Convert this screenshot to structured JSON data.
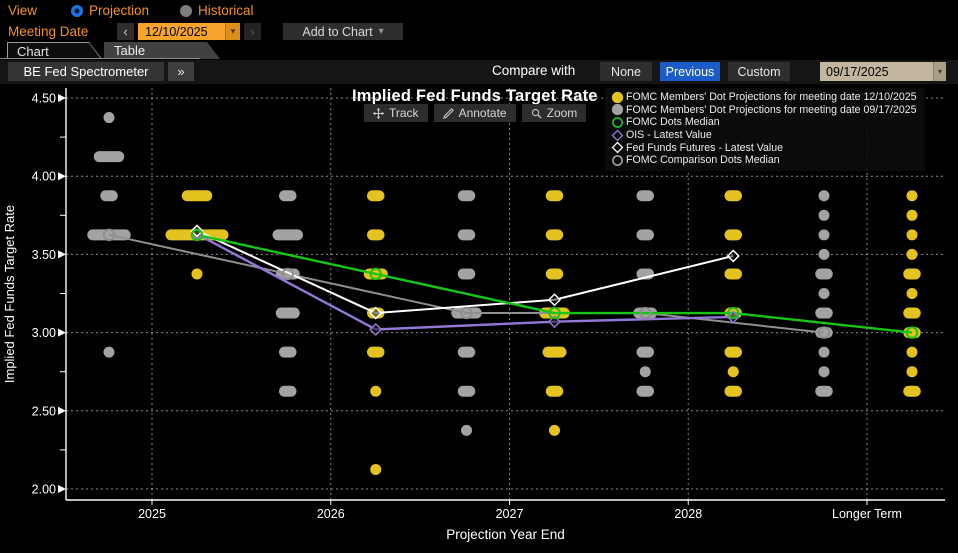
{
  "toolbar": {
    "view_label": "View",
    "radio_projection": "Projection",
    "radio_historical": "Historical",
    "meeting_date_label": "Meeting Date",
    "prev_arrow": "‹",
    "next_arrow": "›",
    "meeting_date_value": "12/10/2025",
    "add_to_chart_label": "Add to Chart",
    "caret": "▾",
    "tab_chart": "Chart",
    "tab_table": "Table",
    "app_button": "BE Fed Spectrometer",
    "expand_button": "»",
    "compare_with_label": "Compare with",
    "compare_none": "None",
    "compare_previous": "Previous",
    "compare_custom": "Custom",
    "compare_date_value": "09/17/2025"
  },
  "chart_tools": {
    "track": "Track",
    "annotate": "Annotate",
    "zoom": "Zoom"
  },
  "colors": {
    "amber_text": "#f5921e",
    "amber_field": "#f7a42a",
    "selected_blue": "#1b5cc8",
    "radio_blue": "#2273e6",
    "beige_field": "#c2b79e",
    "dots_current": "#e4c320",
    "dots_comparison": "#a3a3a3",
    "median_green": "#16c516",
    "ois_purple": "#9478d8",
    "futures_white": "#ffffff",
    "comparison_line_gray": "#8f8f8f"
  },
  "legend": [
    {
      "marker": "dot-filled",
      "color": "#e4c320",
      "label": "FOMC Members' Dot Projections for meeting date 12/10/2025"
    },
    {
      "marker": "dot-filled",
      "color": "#a3a3a3",
      "label": "FOMC Members' Dot Projections for meeting date 09/17/2025"
    },
    {
      "marker": "circle-open",
      "color": "#16c516",
      "label": "FOMC Dots Median"
    },
    {
      "marker": "diamond-open",
      "color": "#9478d8",
      "label": "OIS - Latest Value"
    },
    {
      "marker": "diamond-open",
      "color": "#ffffff",
      "label": "Fed Funds Futures - Latest Value"
    },
    {
      "marker": "circle-open",
      "color": "#a3a3a3",
      "label": "FOMC Comparison Dots Median"
    }
  ],
  "chart_data": {
    "type": "scatter",
    "title": "Implied Fed Funds Target Rate",
    "xlabel": "Projection Year End",
    "ylabel": "Implied Fed Funds Target Rate",
    "ylim": [
      2.0,
      4.5
    ],
    "yticks": [
      4.5,
      4.0,
      3.5,
      3.0,
      2.5,
      2.0
    ],
    "ytick_minor_step": 0.25,
    "grid": "dotted",
    "legend_position": "top-right",
    "categories": [
      "2025",
      "2026",
      "2027",
      "2028",
      "Longer Term"
    ],
    "dot_series": [
      {
        "name": "FOMC Members' Dot Projections for meeting date 09/17/2025",
        "color": "#a3a3a3",
        "role": "comparison",
        "dots": {
          "2025": [
            [
              4.375,
              1
            ],
            [
              4.125,
              4
            ],
            [
              3.875,
              2
            ],
            [
              3.625,
              6
            ],
            [
              2.875,
              1
            ]
          ],
          "2026": [
            [
              3.875,
              2
            ],
            [
              3.625,
              4
            ],
            [
              3.375,
              3
            ],
            [
              3.125,
              3
            ],
            [
              2.875,
              2
            ],
            [
              2.625,
              2
            ]
          ],
          "2027": [
            [
              3.875,
              2
            ],
            [
              3.625,
              2
            ],
            [
              3.375,
              2
            ],
            [
              3.125,
              4
            ],
            [
              2.875,
              2
            ],
            [
              2.625,
              2
            ],
            [
              2.375,
              1
            ]
          ],
          "2028": [
            [
              3.875,
              2
            ],
            [
              3.625,
              2
            ],
            [
              3.375,
              2
            ],
            [
              3.125,
              3
            ],
            [
              2.875,
              2
            ],
            [
              2.75,
              1
            ],
            [
              2.625,
              2
            ]
          ],
          "Longer Term": [
            [
              3.875,
              1
            ],
            [
              3.75,
              1
            ],
            [
              3.625,
              1
            ],
            [
              3.5,
              1
            ],
            [
              3.375,
              2
            ],
            [
              3.25,
              1
            ],
            [
              3.125,
              2
            ],
            [
              3.0,
              2
            ],
            [
              2.875,
              1
            ],
            [
              2.75,
              1
            ],
            [
              2.625,
              2
            ]
          ]
        }
      },
      {
        "name": "FOMC Members' Dot Projections for meeting date 12/10/2025",
        "color": "#e4c320",
        "role": "current",
        "dots": {
          "2025": [
            [
              3.875,
              4
            ],
            [
              3.625,
              9
            ],
            [
              3.375,
              1
            ]
          ],
          "2026": [
            [
              3.875,
              2
            ],
            [
              3.625,
              2
            ],
            [
              3.375,
              3
            ],
            [
              3.125,
              2
            ],
            [
              2.875,
              2
            ],
            [
              2.625,
              1
            ],
            [
              2.125,
              1
            ]
          ],
          "2027": [
            [
              3.875,
              2
            ],
            [
              3.625,
              2
            ],
            [
              3.375,
              2
            ],
            [
              3.125,
              4
            ],
            [
              2.875,
              3
            ],
            [
              2.625,
              2
            ],
            [
              2.375,
              1
            ]
          ],
          "2028": [
            [
              3.875,
              2
            ],
            [
              3.625,
              2
            ],
            [
              3.375,
              2
            ],
            [
              3.125,
              2
            ],
            [
              2.875,
              2
            ],
            [
              2.75,
              1
            ],
            [
              2.625,
              2
            ]
          ],
          "Longer Term": [
            [
              3.875,
              1
            ],
            [
              3.75,
              1
            ],
            [
              3.625,
              1
            ],
            [
              3.5,
              1
            ],
            [
              3.375,
              2
            ],
            [
              3.25,
              1
            ],
            [
              3.125,
              2
            ],
            [
              3.0,
              2
            ],
            [
              2.875,
              1
            ],
            [
              2.75,
              1
            ],
            [
              2.625,
              2
            ]
          ]
        }
      }
    ],
    "line_series": [
      {
        "name": "FOMC Comparison Dots Median",
        "color": "#8f8f8f",
        "width": 2,
        "marker": "circle-open",
        "on": "comparison",
        "values": [
          3.625,
          3.375,
          3.125,
          3.125,
          3.0
        ]
      },
      {
        "name": "OIS - Latest Value",
        "color": "#9478d8",
        "width": 2.4,
        "marker": "diamond-open",
        "on": "current",
        "values": [
          3.63,
          3.02,
          3.07,
          3.1,
          null
        ]
      },
      {
        "name": "Fed Funds Futures - Latest Value",
        "color": "#ffffff",
        "width": 2,
        "marker": "diamond-open",
        "on": "current",
        "values": [
          3.65,
          3.125,
          3.21,
          3.49,
          null
        ]
      },
      {
        "name": "FOMC Dots Median",
        "color": "#16c516",
        "width": 2.4,
        "marker": "circle-open",
        "on": "current",
        "values": [
          3.625,
          3.375,
          3.125,
          3.125,
          3.0
        ]
      }
    ]
  }
}
